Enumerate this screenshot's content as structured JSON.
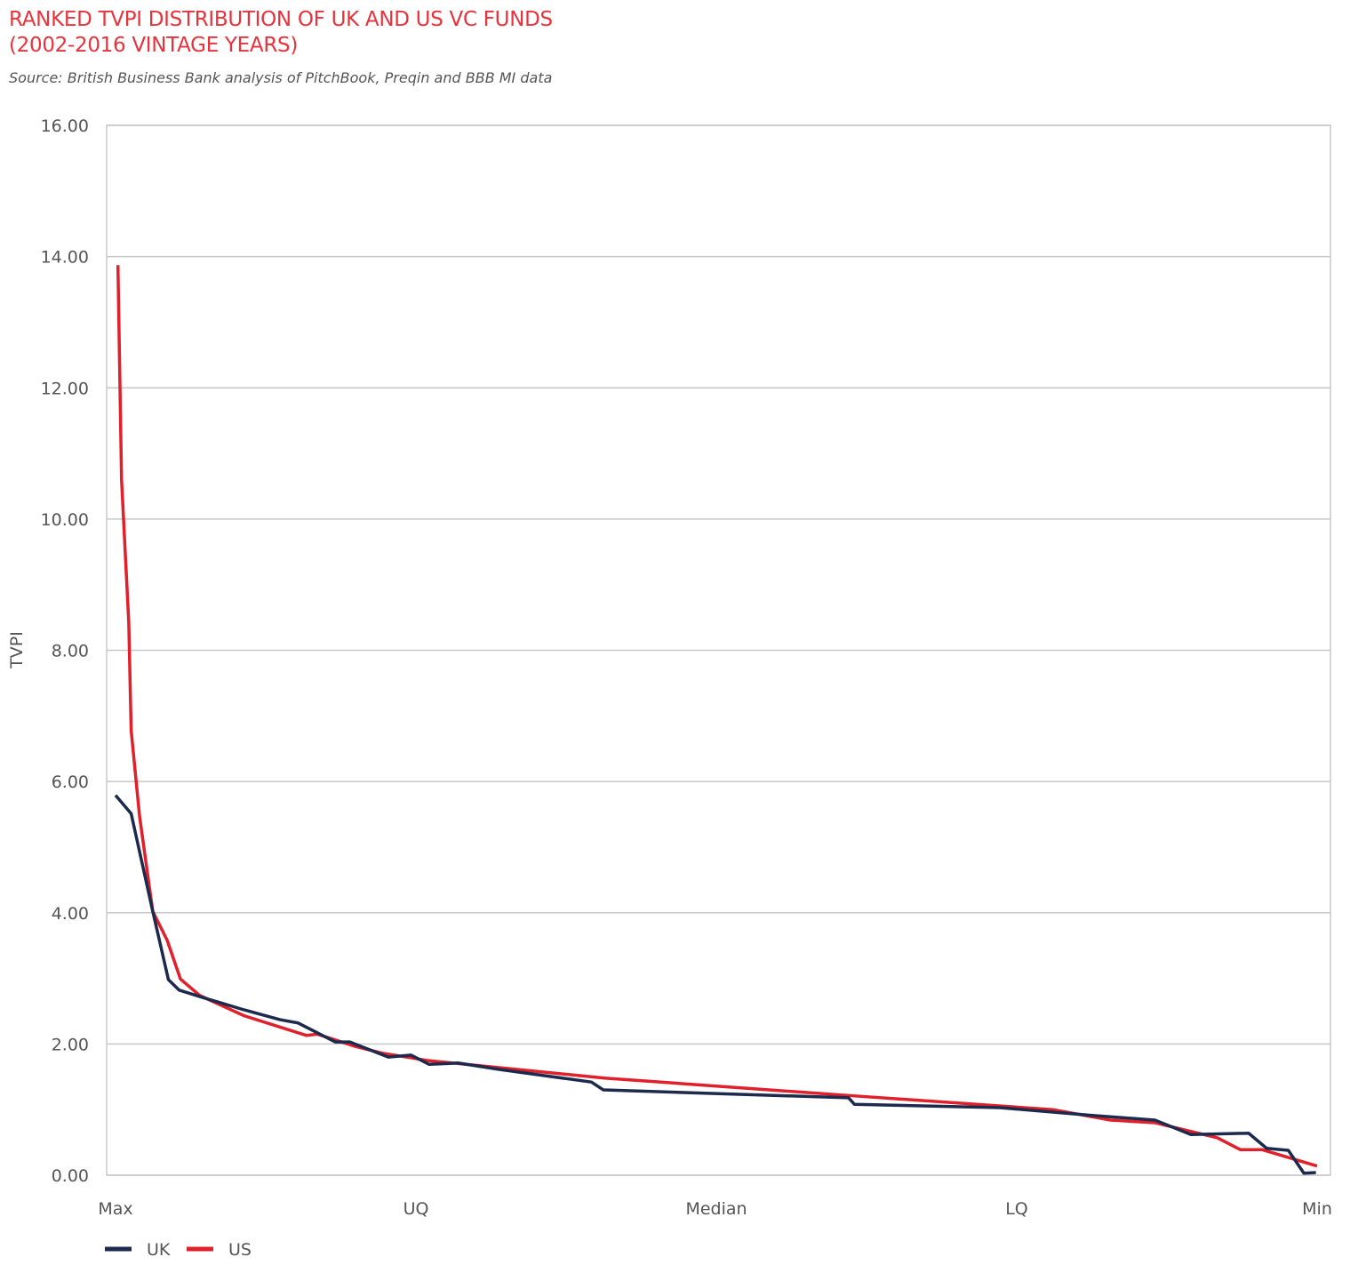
{
  "chart_data": {
    "type": "line",
    "title": "RANKED TVPI DISTRIBUTION OF UK AND US VC FUNDS",
    "subtitle": "(2002-2016 VINTAGE YEARS)",
    "source": "Source: British Business Bank analysis of PitchBook, Preqin and BBB MI data",
    "xlabel": "",
    "ylabel": "TVPI",
    "ylim": [
      0,
      16
    ],
    "yticks": [
      "0.00",
      "2.00",
      "4.00",
      "6.00",
      "8.00",
      "10.00",
      "12.00",
      "14.00",
      "16.00"
    ],
    "x_unit": "rank percentile (0 = Max, 100 = Min)",
    "xticks": [
      {
        "pos": 0,
        "label": "Max"
      },
      {
        "pos": 25,
        "label": "UQ"
      },
      {
        "pos": 50,
        "label": "Median"
      },
      {
        "pos": 75,
        "label": "LQ"
      },
      {
        "pos": 100,
        "label": "Min"
      }
    ],
    "grid": true,
    "legend_position": "bottom-left",
    "series": [
      {
        "name": "UK",
        "color": "#1c2a4d",
        "points": [
          [
            0,
            5.79
          ],
          [
            1.3,
            5.51
          ],
          [
            3.1,
            4.02
          ],
          [
            4.4,
            2.98
          ],
          [
            5.3,
            2.82
          ],
          [
            7.4,
            2.7
          ],
          [
            10.7,
            2.52
          ],
          [
            13.7,
            2.37
          ],
          [
            15.2,
            2.32
          ],
          [
            18.3,
            2.03
          ],
          [
            19.5,
            2.03
          ],
          [
            22.7,
            1.8
          ],
          [
            24.6,
            1.83
          ],
          [
            26.1,
            1.69
          ],
          [
            28.5,
            1.71
          ],
          [
            32.0,
            1.61
          ],
          [
            39.6,
            1.42
          ],
          [
            40.6,
            1.3
          ],
          [
            61.0,
            1.18
          ],
          [
            61.5,
            1.08
          ],
          [
            73.6,
            1.03
          ],
          [
            81.4,
            0.91
          ],
          [
            86.5,
            0.84
          ],
          [
            89.5,
            0.62
          ],
          [
            94.3,
            0.64
          ],
          [
            95.8,
            0.41
          ],
          [
            97.6,
            0.38
          ],
          [
            98.9,
            0.03
          ],
          [
            99.9,
            0.04
          ]
        ]
      },
      {
        "name": "US",
        "color": "#e0202b",
        "points": [
          [
            0.2,
            13.87
          ],
          [
            0.5,
            10.6
          ],
          [
            1.1,
            8.43
          ],
          [
            1.3,
            6.78
          ],
          [
            2.0,
            5.47
          ],
          [
            3.1,
            4.02
          ],
          [
            4.3,
            3.58
          ],
          [
            5.4,
            2.99
          ],
          [
            7.0,
            2.74
          ],
          [
            10.7,
            2.43
          ],
          [
            15.9,
            2.13
          ],
          [
            16.8,
            2.15
          ],
          [
            20.0,
            1.96
          ],
          [
            22.2,
            1.86
          ],
          [
            25.9,
            1.75
          ],
          [
            40.7,
            1.48
          ],
          [
            61.4,
            1.21
          ],
          [
            78.0,
            1.0
          ],
          [
            82.8,
            0.84
          ],
          [
            86.5,
            0.8
          ],
          [
            91.7,
            0.57
          ],
          [
            93.6,
            0.39
          ],
          [
            95.4,
            0.39
          ],
          [
            100,
            0.14
          ]
        ]
      }
    ]
  }
}
